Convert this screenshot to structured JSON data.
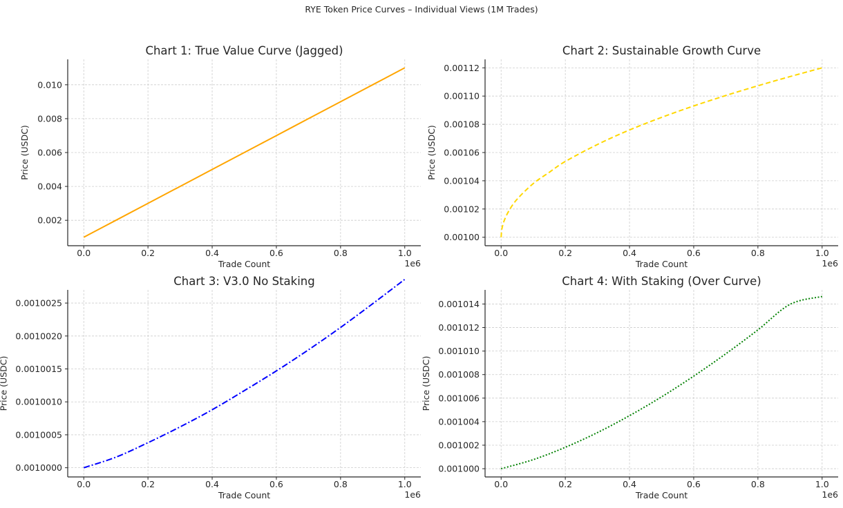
{
  "suptitle": "RYE Token Price Curves – Individual Views (1M Trades)",
  "chart_data": [
    {
      "type": "line",
      "title": "Chart 1: True Value Curve (Jagged)",
      "xlabel": "Trade Count",
      "ylabel": "Price (USDC)",
      "x_offset_label": "1e6",
      "xlim": [
        -50000,
        1050000
      ],
      "ylim": [
        0.0005,
        0.0115
      ],
      "xticks": [
        0,
        200000,
        400000,
        600000,
        800000,
        1000000
      ],
      "xtick_labels": [
        "0.0",
        "0.2",
        "0.4",
        "0.6",
        "0.8",
        "1.0"
      ],
      "yticks": [
        0.002,
        0.004,
        0.006,
        0.008,
        0.01
      ],
      "ytick_labels": [
        "0.002",
        "0.004",
        "0.006",
        "0.008",
        "0.010"
      ],
      "grid": true,
      "series": [
        {
          "color": "#FFA500",
          "linestyle": "solid",
          "x": [
            0,
            100000,
            200000,
            300000,
            400000,
            500000,
            600000,
            700000,
            800000,
            900000,
            1000000
          ],
          "y": [
            0.001,
            0.002,
            0.003,
            0.004,
            0.005,
            0.006,
            0.007,
            0.008,
            0.009,
            0.01,
            0.011
          ]
        }
      ]
    },
    {
      "type": "line",
      "title": "Chart 2: Sustainable Growth Curve",
      "xlabel": "Trade Count",
      "ylabel": "Price (USDC)",
      "x_offset_label": "1e6",
      "xlim": [
        -50000,
        1050000
      ],
      "ylim": [
        0.000994,
        0.001126
      ],
      "xticks": [
        0,
        200000,
        400000,
        600000,
        800000,
        1000000
      ],
      "xtick_labels": [
        "0.0",
        "0.2",
        "0.4",
        "0.6",
        "0.8",
        "1.0"
      ],
      "yticks": [
        0.001,
        0.00102,
        0.00104,
        0.00106,
        0.00108,
        0.0011,
        0.00112
      ],
      "ytick_labels": [
        "0.00100",
        "0.00102",
        "0.00104",
        "0.00106",
        "0.00108",
        "0.00110",
        "0.00112"
      ],
      "grid": true,
      "series": [
        {
          "color": "#FFD700",
          "linestyle": "dashed",
          "x": [
            0,
            2500,
            10000,
            25000,
            50000,
            100000,
            150000,
            200000,
            300000,
            400000,
            500000,
            600000,
            700000,
            800000,
            900000,
            1000000
          ],
          "y": [
            0.001,
            0.001006,
            0.001012,
            0.001019,
            0.001027,
            0.001038,
            0.001046,
            0.0010537,
            0.0010657,
            0.001076,
            0.0010849,
            0.001093,
            0.0011004,
            0.0011073,
            0.0011138,
            0.00112
          ]
        }
      ]
    },
    {
      "type": "line",
      "title": "Chart 3: V3.0 No Staking",
      "xlabel": "Trade Count",
      "ylabel": "Price (USDC)",
      "x_offset_label": "1e6",
      "xlim": [
        -50000,
        1050000
      ],
      "ylim": [
        0.00099986,
        0.0010027
      ],
      "xticks": [
        0,
        200000,
        400000,
        600000,
        800000,
        1000000
      ],
      "xtick_labels": [
        "0.0",
        "0.2",
        "0.4",
        "0.6",
        "0.8",
        "1.0"
      ],
      "yticks": [
        0.001,
        0.0010005,
        0.001001,
        0.0010015,
        0.001002,
        0.0010025
      ],
      "ytick_labels": [
        "0.0010000",
        "0.0010005",
        "0.0010010",
        "0.0010015",
        "0.0010020",
        "0.0010025"
      ],
      "grid": true,
      "series": [
        {
          "color": "#0000FF",
          "linestyle": "dashdot",
          "x": [
            0,
            100000,
            200000,
            300000,
            400000,
            500000,
            600000,
            700000,
            800000,
            900000,
            1000000
          ],
          "y": [
            0.001,
            0.00100016,
            0.00100038,
            0.00100062,
            0.00100088,
            0.00100117,
            0.00100147,
            0.00100179,
            0.00100213,
            0.00100249,
            0.00100286
          ]
        }
      ]
    },
    {
      "type": "line",
      "title": "Chart 4: With Staking (Over Curve)",
      "xlabel": "Trade Count",
      "ylabel": "Price (USDC)",
      "x_offset_label": "1e6",
      "xlim": [
        -50000,
        1050000
      ],
      "ylim": [
        0.0009993,
        0.0010152
      ],
      "xticks": [
        0,
        200000,
        400000,
        600000,
        800000,
        1000000
      ],
      "xtick_labels": [
        "0.0",
        "0.2",
        "0.4",
        "0.6",
        "0.8",
        "1.0"
      ],
      "yticks": [
        0.001,
        0.001002,
        0.001004,
        0.001006,
        0.001008,
        0.00101,
        0.001012,
        0.001014
      ],
      "ytick_labels": [
        "0.001000",
        "0.001002",
        "0.001004",
        "0.001006",
        "0.001008",
        "0.001010",
        "0.001012",
        "0.001014"
      ],
      "grid": true,
      "series": [
        {
          "color": "#008000",
          "linestyle": "dotted",
          "x": [
            0,
            100000,
            200000,
            300000,
            400000,
            500000,
            600000,
            700000,
            800000,
            900000,
            1000000
          ],
          "y": [
            0.001,
            0.00100077,
            0.00100182,
            0.00100307,
            0.00100451,
            0.00100611,
            0.00100787,
            0.00100977,
            0.0010118,
            0.00101397,
            0.00101464
          ]
        }
      ]
    }
  ]
}
